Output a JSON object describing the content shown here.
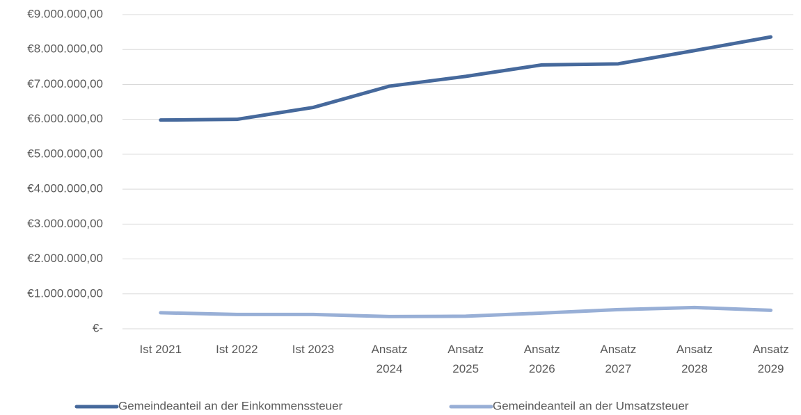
{
  "chart_data": {
    "type": "line",
    "categories": [
      "Ist 2021",
      "Ist 2022",
      "Ist 2023",
      "Ansatz 2024",
      "Ansatz 2025",
      "Ansatz 2026",
      "Ansatz 2027",
      "Ansatz 2028",
      "Ansatz 2029"
    ],
    "series": [
      {
        "name": "Gemeindeanteil an der Einkommenssteuer",
        "color": "#46699c",
        "values": [
          5980000,
          6000000,
          6340000,
          6950000,
          7230000,
          7560000,
          7590000,
          7970000,
          8360000
        ]
      },
      {
        "name": "Gemeindeanteil an der Umsatzsteuer",
        "color": "#98afd6",
        "values": [
          460000,
          410000,
          410000,
          350000,
          360000,
          450000,
          550000,
          610000,
          530000
        ]
      }
    ],
    "ylim": [
      0,
      9000000
    ],
    "yticks": [
      {
        "value": 0,
        "label": "€-"
      },
      {
        "value": 1000000,
        "label": "€1.000.000,00"
      },
      {
        "value": 2000000,
        "label": "€2.000.000,00"
      },
      {
        "value": 3000000,
        "label": "€3.000.000,00"
      },
      {
        "value": 4000000,
        "label": "€4.000.000,00"
      },
      {
        "value": 5000000,
        "label": "€5.000.000,00"
      },
      {
        "value": 6000000,
        "label": "€6.000.000,00"
      },
      {
        "value": 7000000,
        "label": "€7.000.000,00"
      },
      {
        "value": 8000000,
        "label": "€8.000.000,00"
      },
      {
        "value": 9000000,
        "label": "€9.000.000,00"
      }
    ],
    "grid": true,
    "legend": "bottom"
  }
}
